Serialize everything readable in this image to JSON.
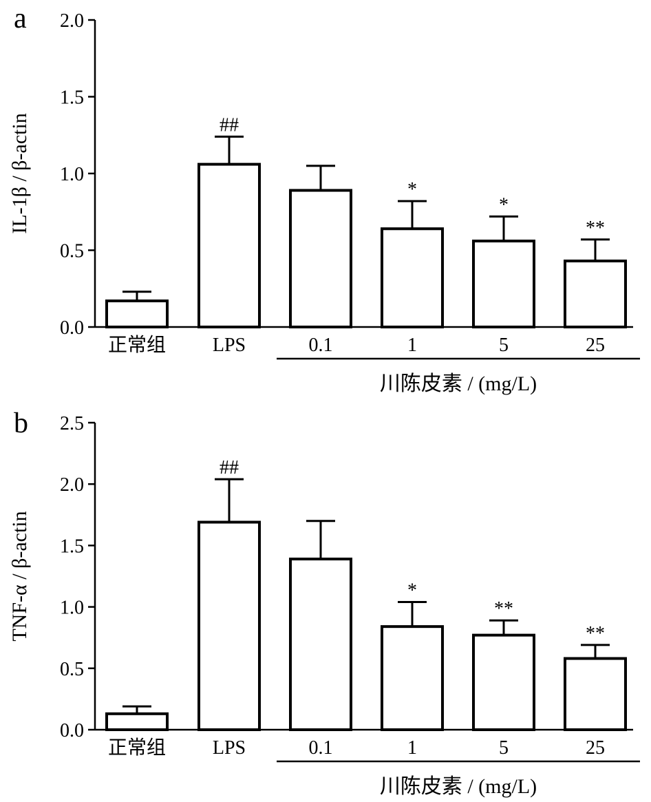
{
  "chart_data": [
    {
      "type": "bar",
      "panel_label": "a",
      "ylabel": "IL-1β / β-actin",
      "ylim": [
        0,
        2.0
      ],
      "yticks": [
        "0.0",
        "0.5",
        "1.0",
        "1.5",
        "2.0"
      ],
      "categories": [
        "正常组",
        "LPS",
        "0.1",
        "1",
        "5",
        "25"
      ],
      "values": [
        0.17,
        1.06,
        0.89,
        0.64,
        0.56,
        0.43
      ],
      "errors": [
        0.06,
        0.18,
        0.16,
        0.18,
        0.16,
        0.14
      ],
      "significance": [
        "",
        "##",
        "",
        "*",
        "*",
        "**"
      ],
      "group_label": "川陈皮素 / (mg/L)",
      "grid": false,
      "legend": "none",
      "colors": {
        "bar_fill": "#ffffff",
        "bar_stroke": "#000000"
      }
    },
    {
      "type": "bar",
      "panel_label": "b",
      "ylabel": "TNF-α / β-actin",
      "ylim": [
        0,
        2.5
      ],
      "yticks": [
        "0.0",
        "0.5",
        "1.0",
        "1.5",
        "2.0",
        "2.5"
      ],
      "categories": [
        "正常组",
        "LPS",
        "0.1",
        "1",
        "5",
        "25"
      ],
      "values": [
        0.13,
        1.69,
        1.39,
        0.84,
        0.77,
        0.58
      ],
      "errors": [
        0.06,
        0.35,
        0.31,
        0.2,
        0.12,
        0.11
      ],
      "significance": [
        "",
        "##",
        "",
        "*",
        "**",
        "**"
      ],
      "group_label": "川陈皮素 / (mg/L)",
      "grid": false,
      "legend": "none",
      "colors": {
        "bar_fill": "#ffffff",
        "bar_stroke": "#000000"
      }
    }
  ]
}
